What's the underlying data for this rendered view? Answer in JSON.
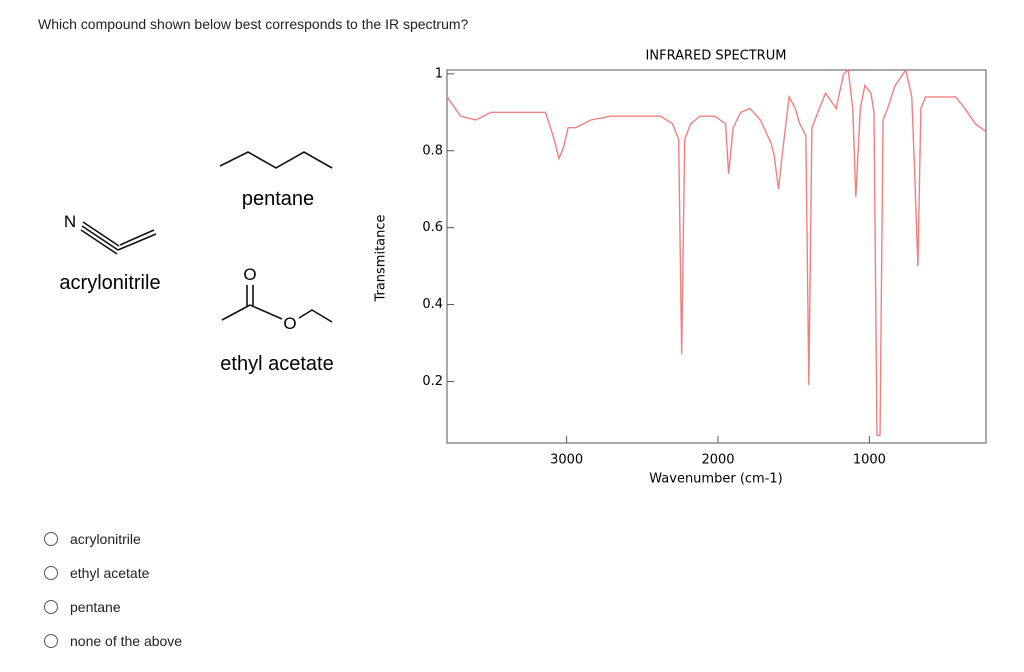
{
  "question": "Which compound shown below best corresponds to the IR spectrum?",
  "structures": [
    {
      "name": "acrylonitrile",
      "atoms": [
        "N"
      ]
    },
    {
      "name": "pentane"
    },
    {
      "name": "ethyl acetate",
      "atoms": [
        "O",
        "O"
      ]
    }
  ],
  "options": [
    "acrylonitrile",
    "ethyl acetate",
    "pentane",
    "none of the above"
  ],
  "chart_data": {
    "type": "line",
    "title": "INFRARED SPECTRUM",
    "xlabel": "Wavenumber (cm-1)",
    "ylabel": "Transmitance",
    "x": [
      3790,
      3700,
      3600,
      3500,
      3370,
      3240,
      3140,
      3090,
      3050,
      3020,
      2990,
      2940,
      2840,
      2710,
      2580,
      2380,
      2300,
      2260,
      2240,
      2220,
      2180,
      2120,
      2020,
      1950,
      1930,
      1900,
      1850,
      1790,
      1720,
      1650,
      1630,
      1600,
      1570,
      1530,
      1490,
      1460,
      1420,
      1400,
      1380,
      1340,
      1290,
      1220,
      1170,
      1140,
      1110,
      1090,
      1060,
      1030,
      990,
      970,
      950,
      930,
      910,
      880,
      830,
      760,
      720,
      700,
      680,
      660,
      630,
      530,
      430,
      370,
      300,
      230
    ],
    "values": [
      0.94,
      0.89,
      0.88,
      0.9,
      0.9,
      0.9,
      0.9,
      0.84,
      0.78,
      0.81,
      0.86,
      0.86,
      0.88,
      0.89,
      0.89,
      0.89,
      0.87,
      0.83,
      0.27,
      0.83,
      0.87,
      0.89,
      0.89,
      0.87,
      0.74,
      0.86,
      0.9,
      0.91,
      0.88,
      0.82,
      0.79,
      0.7,
      0.81,
      0.94,
      0.91,
      0.87,
      0.84,
      0.19,
      0.86,
      0.9,
      0.95,
      0.91,
      1.0,
      1.01,
      0.91,
      0.68,
      0.91,
      0.97,
      0.95,
      0.9,
      0.06,
      0.06,
      0.88,
      0.91,
      0.97,
      1.01,
      0.94,
      0.73,
      0.5,
      0.91,
      0.94,
      0.94,
      0.94,
      0.91,
      0.87,
      0.85
    ],
    "color": "#f08080",
    "xlim": [
      3790,
      230
    ],
    "ylim": [
      0.04,
      1.01
    ],
    "xticks": [
      3000,
      2000,
      1000
    ],
    "yticks": [
      1,
      0.8,
      0.6,
      0.4,
      0.2
    ]
  }
}
